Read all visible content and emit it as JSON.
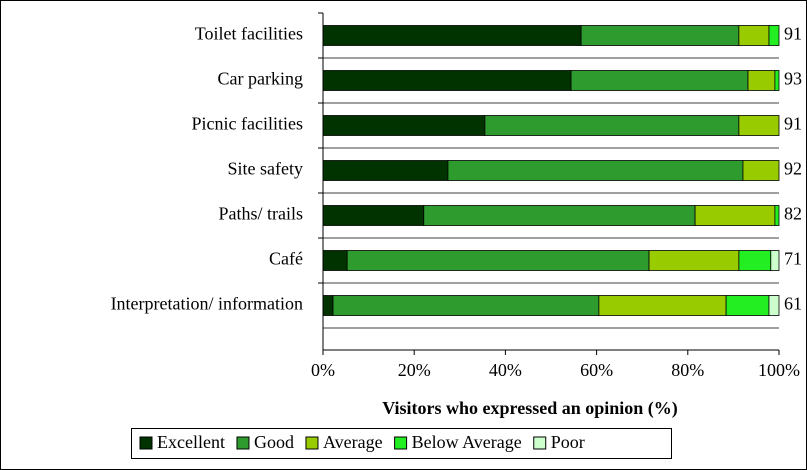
{
  "chart_data": {
    "type": "stacked_bar_horizontal",
    "x_label": "Visitors who expressed an opinion (%)",
    "categories": [
      "Toilet facilities",
      "Car parking",
      "Picnic facilities",
      "Site safety",
      "Paths/ trails",
      "Café",
      "Interpretation/ information"
    ],
    "series": [
      {
        "name": "Excellent",
        "color": "#003300",
        "values": [
          56.6,
          54.4,
          35.5,
          27.4,
          22.1,
          5.3,
          2.2
        ]
      },
      {
        "name": "Good",
        "color": "#2e9b2e",
        "values": [
          34.6,
          38.8,
          55.7,
          64.7,
          59.5,
          66.2,
          58.3
        ]
      },
      {
        "name": "Average",
        "color": "#99cc00",
        "values": [
          6.6,
          5.9,
          8.8,
          7.9,
          17.5,
          19.7,
          27.9
        ]
      },
      {
        "name": "Below Average",
        "color": "#22ee22",
        "values": [
          2.2,
          0.9,
          0,
          0,
          0.9,
          7.0,
          9.4
        ]
      },
      {
        "name": "Poor",
        "color": "#ccffcc",
        "values": [
          0,
          0,
          0,
          0,
          0,
          1.8,
          2.2
        ]
      }
    ],
    "annotations": [
      "91",
      "93",
      "91",
      "92",
      "82",
      "71",
      "61"
    ],
    "xlim": [
      0,
      100
    ],
    "xticks": [
      {
        "value": 0,
        "label": "0%"
      },
      {
        "value": 20,
        "label": "20%"
      },
      {
        "value": 40,
        "label": "40%"
      },
      {
        "value": 60,
        "label": "60%"
      },
      {
        "value": 80,
        "label": "80%"
      },
      {
        "value": 100,
        "label": "100%"
      }
    ],
    "legend": "bottom"
  }
}
